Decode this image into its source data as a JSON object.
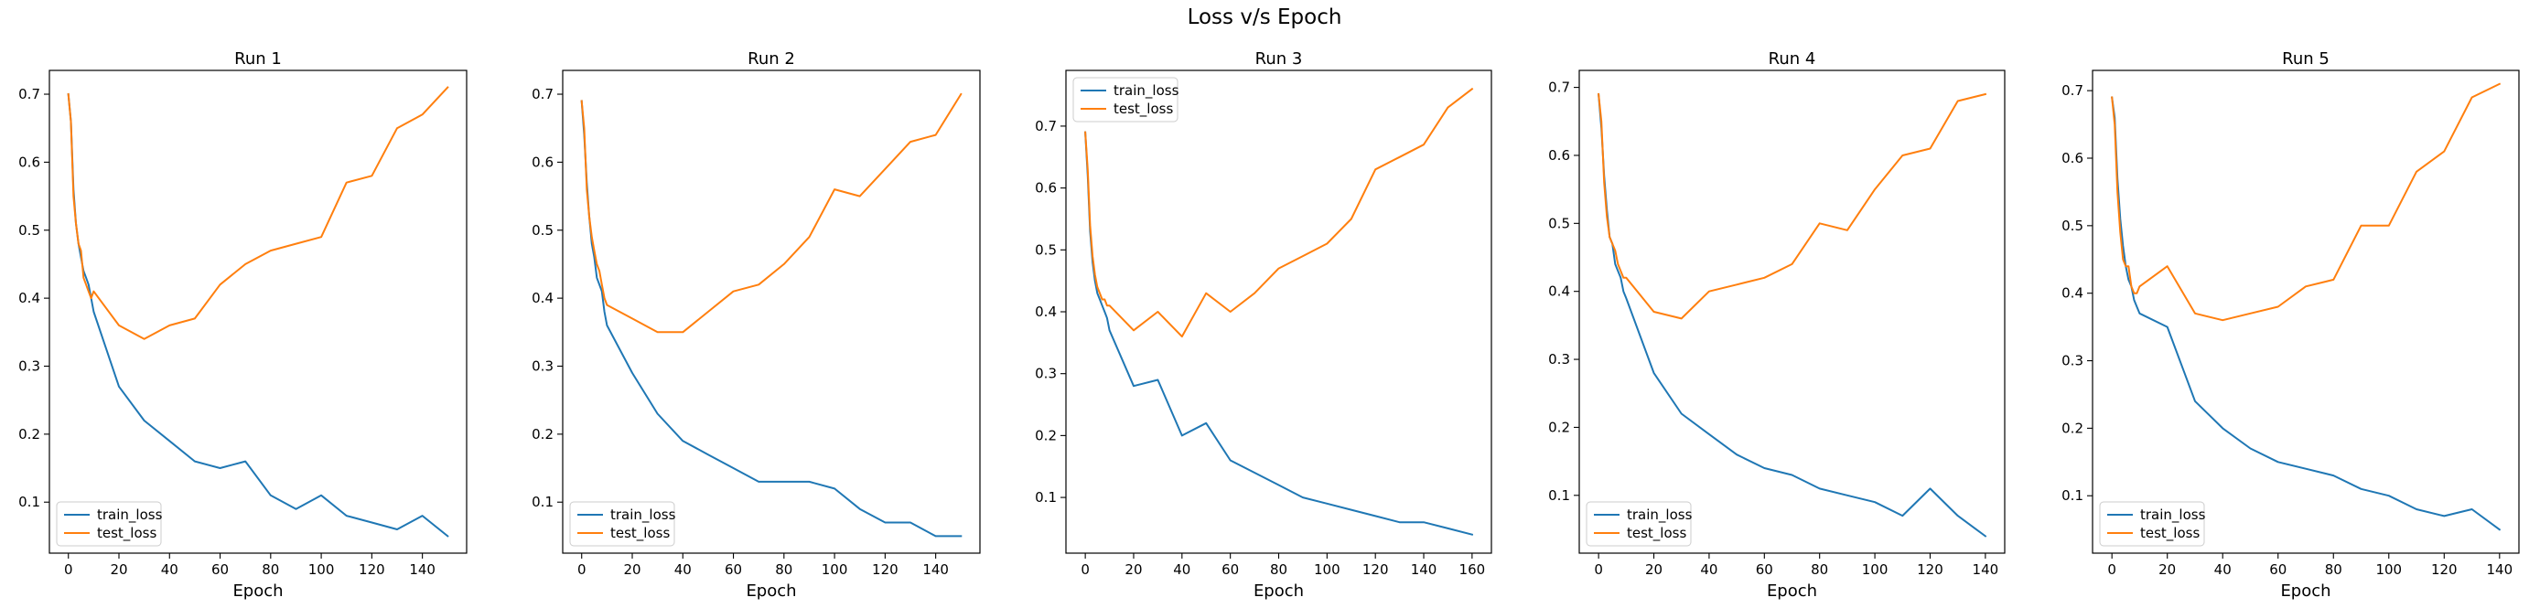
{
  "figure": {
    "title": "Loss v/s Epoch"
  },
  "chart_data": [
    {
      "type": "line",
      "title": "Run 1",
      "xlabel": "Epoch",
      "ylabel": "",
      "xlim": [
        -7.5,
        157.5
      ],
      "ylim": [
        0.025,
        0.735
      ],
      "xticks": [
        0,
        20,
        40,
        60,
        80,
        100,
        120,
        140
      ],
      "yticks": [
        0.1,
        0.2,
        0.3,
        0.4,
        0.5,
        0.6,
        0.7
      ],
      "legend": "lower-left",
      "series": [
        {
          "name": "train_loss",
          "color": "#1f77b4",
          "x": [
            0,
            1,
            2,
            3,
            4,
            5,
            6,
            7,
            8,
            9,
            10,
            20,
            30,
            40,
            50,
            60,
            70,
            80,
            90,
            100,
            110,
            120,
            130,
            140,
            150
          ],
          "y": [
            0.7,
            0.66,
            0.56,
            0.51,
            0.48,
            0.46,
            0.44,
            0.43,
            0.42,
            0.4,
            0.38,
            0.27,
            0.22,
            0.19,
            0.16,
            0.15,
            0.16,
            0.11,
            0.09,
            0.11,
            0.08,
            0.07,
            0.06,
            0.08,
            0.05
          ]
        },
        {
          "name": "test_loss",
          "color": "#ff7f0e",
          "x": [
            0,
            1,
            2,
            3,
            4,
            5,
            6,
            7,
            8,
            9,
            10,
            20,
            30,
            40,
            50,
            60,
            70,
            80,
            90,
            100,
            110,
            120,
            130,
            140,
            150
          ],
          "y": [
            0.7,
            0.66,
            0.55,
            0.51,
            0.48,
            0.47,
            0.43,
            0.42,
            0.41,
            0.4,
            0.41,
            0.36,
            0.34,
            0.36,
            0.37,
            0.42,
            0.45,
            0.47,
            0.48,
            0.49,
            0.57,
            0.58,
            0.65,
            0.67,
            0.71
          ]
        }
      ]
    },
    {
      "type": "line",
      "title": "Run 2",
      "xlabel": "Epoch",
      "ylabel": "",
      "xlim": [
        -7.5,
        157.5
      ],
      "ylim": [
        0.025,
        0.735
      ],
      "xticks": [
        0,
        20,
        40,
        60,
        80,
        100,
        120,
        140
      ],
      "yticks": [
        0.1,
        0.2,
        0.3,
        0.4,
        0.5,
        0.6,
        0.7
      ],
      "legend": "lower-left",
      "series": [
        {
          "name": "train_loss",
          "color": "#1f77b4",
          "x": [
            0,
            1,
            2,
            3,
            4,
            5,
            6,
            7,
            8,
            9,
            10,
            20,
            30,
            40,
            50,
            60,
            70,
            80,
            90,
            100,
            110,
            120,
            130,
            140,
            150
          ],
          "y": [
            0.69,
            0.64,
            0.57,
            0.52,
            0.48,
            0.46,
            0.43,
            0.42,
            0.41,
            0.38,
            0.36,
            0.29,
            0.23,
            0.19,
            0.17,
            0.15,
            0.13,
            0.13,
            0.13,
            0.12,
            0.09,
            0.07,
            0.07,
            0.05,
            0.05
          ]
        },
        {
          "name": "test_loss",
          "color": "#ff7f0e",
          "x": [
            0,
            1,
            2,
            3,
            4,
            5,
            6,
            7,
            8,
            9,
            10,
            20,
            30,
            40,
            50,
            60,
            70,
            80,
            90,
            100,
            110,
            120,
            130,
            140,
            150
          ],
          "y": [
            0.69,
            0.65,
            0.56,
            0.52,
            0.49,
            0.47,
            0.45,
            0.44,
            0.42,
            0.4,
            0.39,
            0.37,
            0.35,
            0.35,
            0.38,
            0.41,
            0.42,
            0.45,
            0.49,
            0.56,
            0.55,
            0.59,
            0.63,
            0.64,
            0.7
          ]
        }
      ]
    },
    {
      "type": "line",
      "title": "Run 3",
      "xlabel": "Epoch",
      "ylabel": "",
      "xlim": [
        -8,
        168
      ],
      "ylim": [
        0.01,
        0.79
      ],
      "xticks": [
        0,
        20,
        40,
        60,
        80,
        100,
        120,
        140,
        160
      ],
      "yticks": [
        0.1,
        0.2,
        0.3,
        0.4,
        0.5,
        0.6,
        0.7
      ],
      "legend": "upper-left",
      "series": [
        {
          "name": "train_loss",
          "color": "#1f77b4",
          "x": [
            0,
            1,
            2,
            3,
            4,
            5,
            6,
            7,
            8,
            9,
            10,
            20,
            30,
            40,
            50,
            60,
            70,
            80,
            90,
            100,
            110,
            120,
            130,
            140,
            150,
            160
          ],
          "y": [
            0.69,
            0.62,
            0.53,
            0.48,
            0.45,
            0.43,
            0.42,
            0.41,
            0.4,
            0.39,
            0.37,
            0.28,
            0.29,
            0.2,
            0.22,
            0.16,
            0.14,
            0.12,
            0.1,
            0.09,
            0.08,
            0.07,
            0.06,
            0.06,
            0.05,
            0.04
          ]
        },
        {
          "name": "test_loss",
          "color": "#ff7f0e",
          "x": [
            0,
            1,
            2,
            3,
            4,
            5,
            6,
            7,
            8,
            9,
            10,
            20,
            30,
            40,
            50,
            60,
            70,
            80,
            90,
            100,
            110,
            120,
            130,
            140,
            150,
            160
          ],
          "y": [
            0.69,
            0.63,
            0.54,
            0.49,
            0.46,
            0.44,
            0.43,
            0.42,
            0.42,
            0.41,
            0.41,
            0.37,
            0.4,
            0.36,
            0.43,
            0.4,
            0.43,
            0.47,
            0.49,
            0.51,
            0.55,
            0.63,
            0.65,
            0.67,
            0.73,
            0.76
          ]
        }
      ]
    },
    {
      "type": "line",
      "title": "Run 4",
      "xlabel": "Epoch",
      "ylabel": "",
      "xlim": [
        -7,
        147
      ],
      "ylim": [
        0.015,
        0.725
      ],
      "xticks": [
        0,
        20,
        40,
        60,
        80,
        100,
        120,
        140
      ],
      "yticks": [
        0.1,
        0.2,
        0.3,
        0.4,
        0.5,
        0.6,
        0.7
      ],
      "legend": "lower-left",
      "series": [
        {
          "name": "train_loss",
          "color": "#1f77b4",
          "x": [
            0,
            1,
            2,
            3,
            4,
            5,
            6,
            7,
            8,
            9,
            10,
            20,
            30,
            40,
            50,
            60,
            70,
            80,
            90,
            100,
            110,
            120,
            130,
            140
          ],
          "y": [
            0.69,
            0.64,
            0.57,
            0.52,
            0.48,
            0.47,
            0.44,
            0.43,
            0.42,
            0.4,
            0.39,
            0.28,
            0.22,
            0.19,
            0.16,
            0.14,
            0.13,
            0.11,
            0.1,
            0.09,
            0.07,
            0.11,
            0.07,
            0.04
          ]
        },
        {
          "name": "test_loss",
          "color": "#ff7f0e",
          "x": [
            0,
            1,
            2,
            3,
            4,
            5,
            6,
            7,
            8,
            9,
            10,
            20,
            30,
            40,
            50,
            60,
            70,
            80,
            90,
            100,
            110,
            120,
            130,
            140
          ],
          "y": [
            0.69,
            0.65,
            0.56,
            0.51,
            0.48,
            0.47,
            0.46,
            0.44,
            0.43,
            0.42,
            0.42,
            0.37,
            0.36,
            0.4,
            0.41,
            0.42,
            0.44,
            0.5,
            0.49,
            0.55,
            0.6,
            0.61,
            0.68,
            0.69
          ]
        }
      ]
    },
    {
      "type": "line",
      "title": "Run 5",
      "xlabel": "Epoch",
      "ylabel": "",
      "xlim": [
        -7,
        147
      ],
      "ylim": [
        0.015,
        0.73
      ],
      "xticks": [
        0,
        20,
        40,
        60,
        80,
        100,
        120,
        140
      ],
      "yticks": [
        0.1,
        0.2,
        0.3,
        0.4,
        0.5,
        0.6,
        0.7
      ],
      "legend": "lower-left",
      "series": [
        {
          "name": "train_loss",
          "color": "#1f77b4",
          "x": [
            0,
            1,
            2,
            3,
            4,
            5,
            6,
            7,
            8,
            9,
            10,
            20,
            30,
            40,
            50,
            60,
            70,
            80,
            90,
            100,
            110,
            120,
            130,
            140
          ],
          "y": [
            0.69,
            0.66,
            0.57,
            0.51,
            0.47,
            0.44,
            0.42,
            0.41,
            0.39,
            0.38,
            0.37,
            0.35,
            0.24,
            0.2,
            0.17,
            0.15,
            0.14,
            0.13,
            0.11,
            0.1,
            0.08,
            0.07,
            0.08,
            0.05
          ]
        },
        {
          "name": "test_loss",
          "color": "#ff7f0e",
          "x": [
            0,
            1,
            2,
            3,
            4,
            5,
            6,
            7,
            8,
            9,
            10,
            20,
            30,
            40,
            50,
            60,
            70,
            80,
            90,
            100,
            110,
            120,
            130,
            140
          ],
          "y": [
            0.69,
            0.65,
            0.55,
            0.49,
            0.45,
            0.44,
            0.44,
            0.41,
            0.4,
            0.4,
            0.41,
            0.44,
            0.37,
            0.36,
            0.37,
            0.38,
            0.41,
            0.42,
            0.5,
            0.5,
            0.58,
            0.61,
            0.69,
            0.71
          ]
        }
      ]
    }
  ]
}
